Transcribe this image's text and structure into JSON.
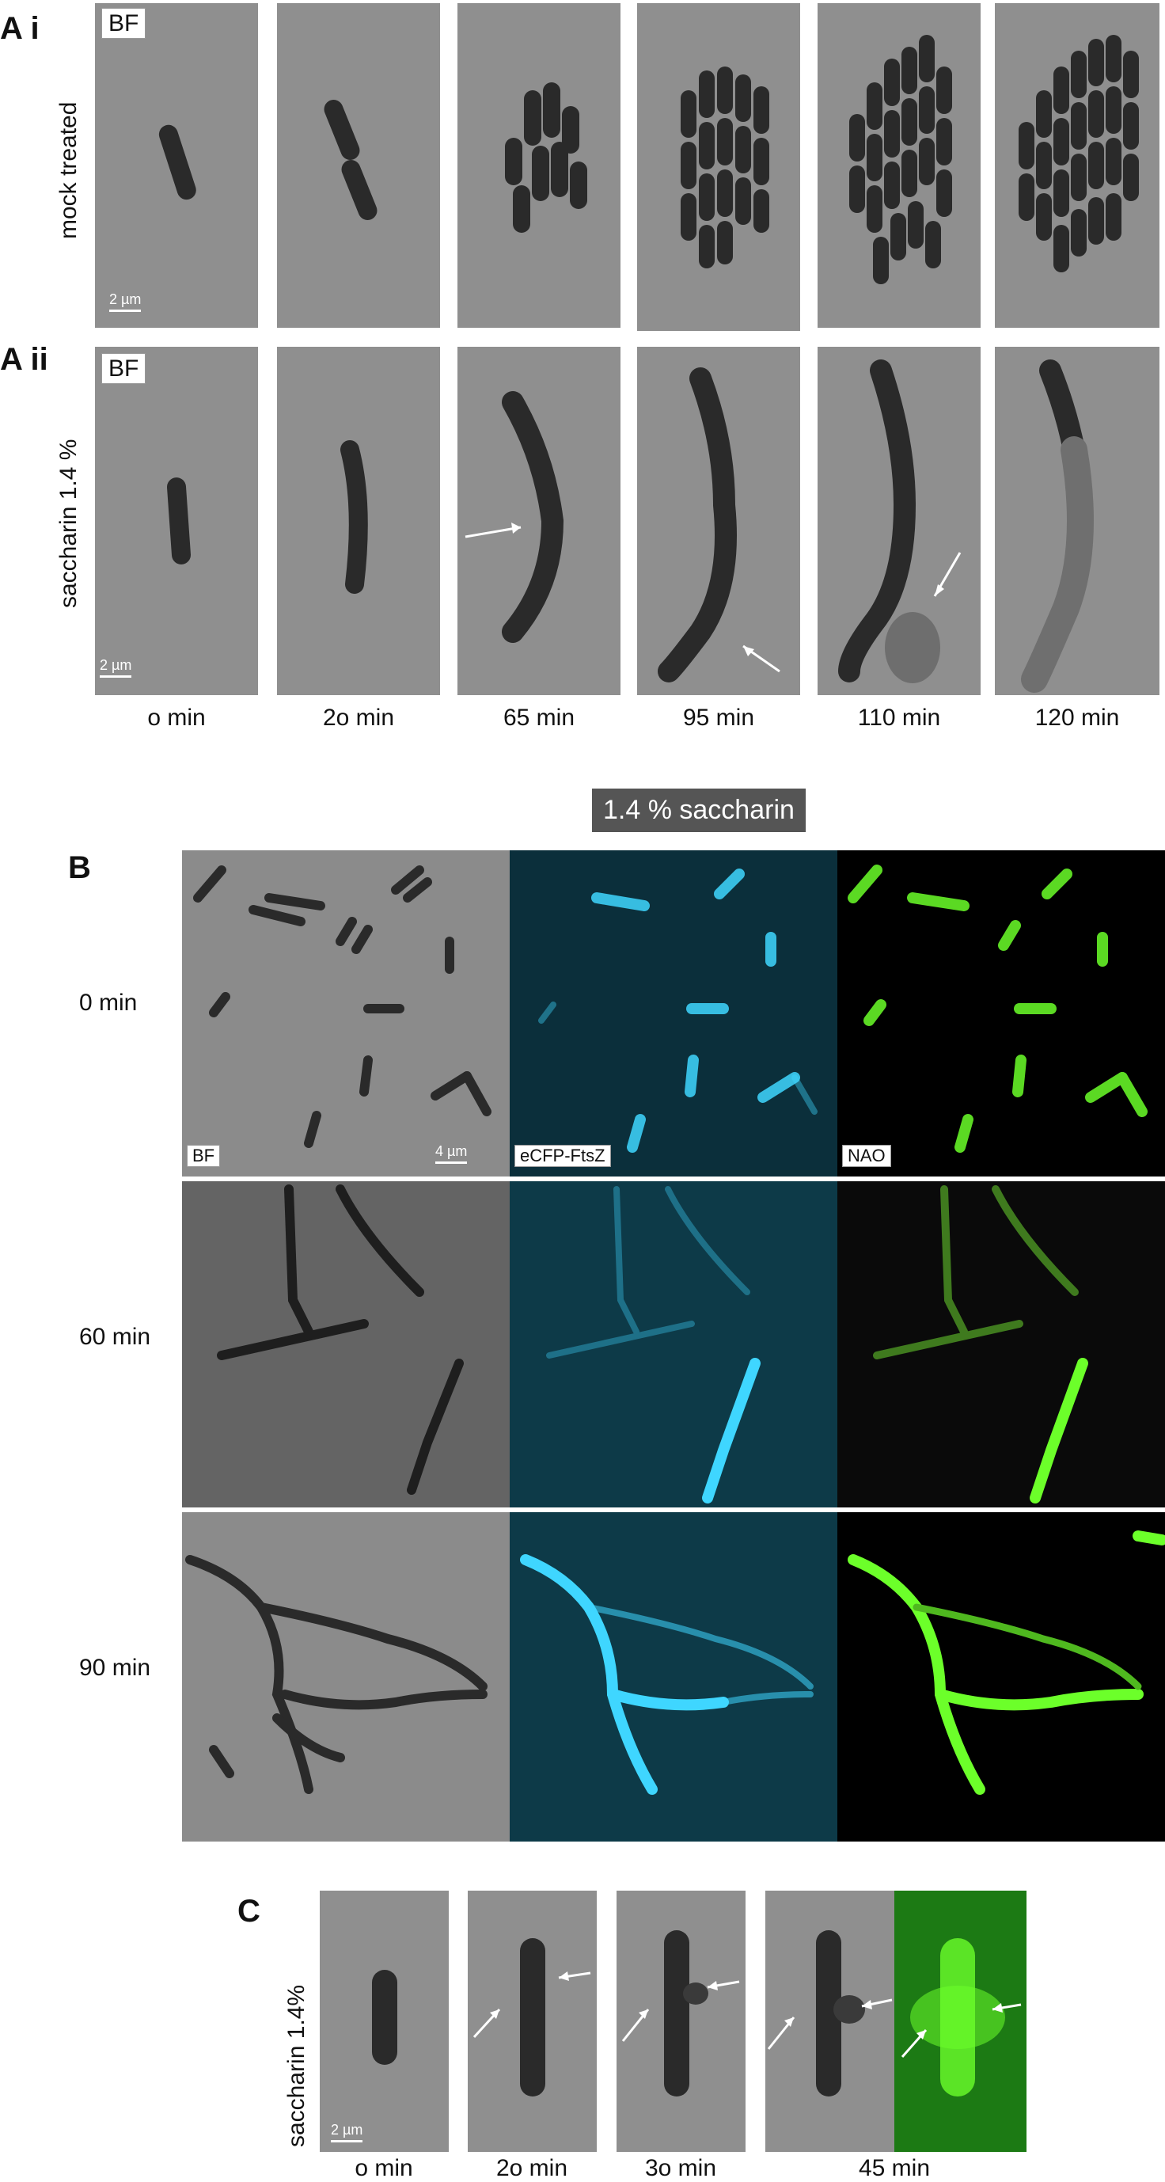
{
  "panelA_i": {
    "letter": "A i",
    "row_label": "mock treated",
    "bf_tag": "BF",
    "scale_bar": "2 µm"
  },
  "panelA_ii": {
    "letter": "A ii",
    "row_label": "saccharin 1.4 %",
    "bf_tag": "BF",
    "scale_bar": "2 µm"
  },
  "panelA_times": [
    "o min",
    "2o min",
    "65 min",
    "95 min",
    "110 min",
    "120 min"
  ],
  "panelB": {
    "letter": "B",
    "header": "1.4 % saccharin",
    "rows": [
      "0 min",
      "60 min",
      "90 min"
    ],
    "channel_tags": [
      "BF",
      "eCFP-FtsZ",
      "NAO"
    ],
    "scale_bar": "4 µm"
  },
  "panelC": {
    "letter": "C",
    "row_label": "saccharin 1.4%",
    "scale_bar": "2 µm",
    "times": [
      "o min",
      "2o min",
      "3o min",
      "45 min"
    ]
  },
  "colors": {
    "bf_background": "#8a8a8a",
    "ecfp": "#3fd6ff",
    "nao": "#6cff2a"
  }
}
